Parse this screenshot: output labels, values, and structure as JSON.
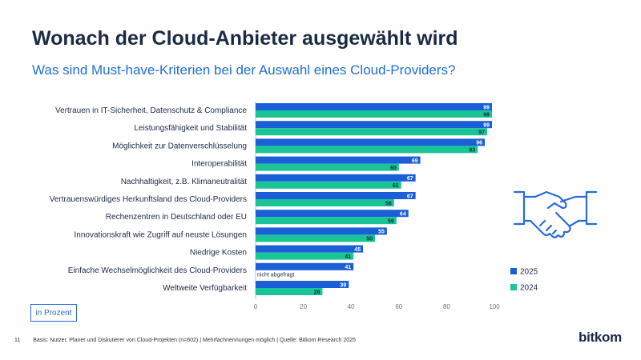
{
  "header": {
    "title": "Wonach der Cloud-Anbieter ausgewählt wird",
    "subtitle": "Was sind Must-have-Kriterien bei der Auswahl eines Cloud-Providers?"
  },
  "unit_label": "in Prozent",
  "footer": {
    "page_number": "11",
    "note": "Basis: Nutzer, Planer und Diskutierer von Cloud-Projekten (n=602) | Mehrfachnennungen möglich | Quelle: Bitkom Research 2025"
  },
  "brand": "bitkom",
  "colors": {
    "series_2025": "#1a5fd8",
    "series_2024": "#19c596",
    "text": "#1b2a44",
    "accent": "#1f6fd6"
  },
  "chart_data": {
    "type": "bar",
    "orientation": "horizontal",
    "title": "Wonach der Cloud-Anbieter ausgewählt wird",
    "xlim": [
      0,
      100
    ],
    "xticks": [
      0,
      20,
      40,
      60,
      80,
      100
    ],
    "categories": [
      "Vertrauen in IT-Sicherheit, Datenschutz & Compliance",
      "Leistungsfähigkeit und Stabilität",
      "Möglichkeit zur Datenverschlüsselung",
      "Interoperabilität",
      "Nachhaltigkeit, z.B. Klimaneutralität",
      "Vertrauenswürdiges Herkunftsland des Cloud-Providers",
      "Rechenzentren in Deutschland oder EU",
      "Innovationskraft wie Zugriff auf neuste Lösungen",
      "Niedrige Kosten",
      "Einfache Wechselmöglichkeit des Cloud-Providers",
      "Weltweite Verfügbarkeit"
    ],
    "series": [
      {
        "name": "2025",
        "values": [
          99,
          99,
          96,
          69,
          67,
          67,
          64,
          55,
          45,
          41,
          39
        ]
      },
      {
        "name": "2024",
        "values": [
          99,
          97,
          93,
          60,
          61,
          58,
          59,
          50,
          41,
          null,
          28
        ]
      }
    ],
    "missing_label": "nicht abgefragt",
    "legend": [
      "2025",
      "2024"
    ],
    "legend_position": "right"
  }
}
